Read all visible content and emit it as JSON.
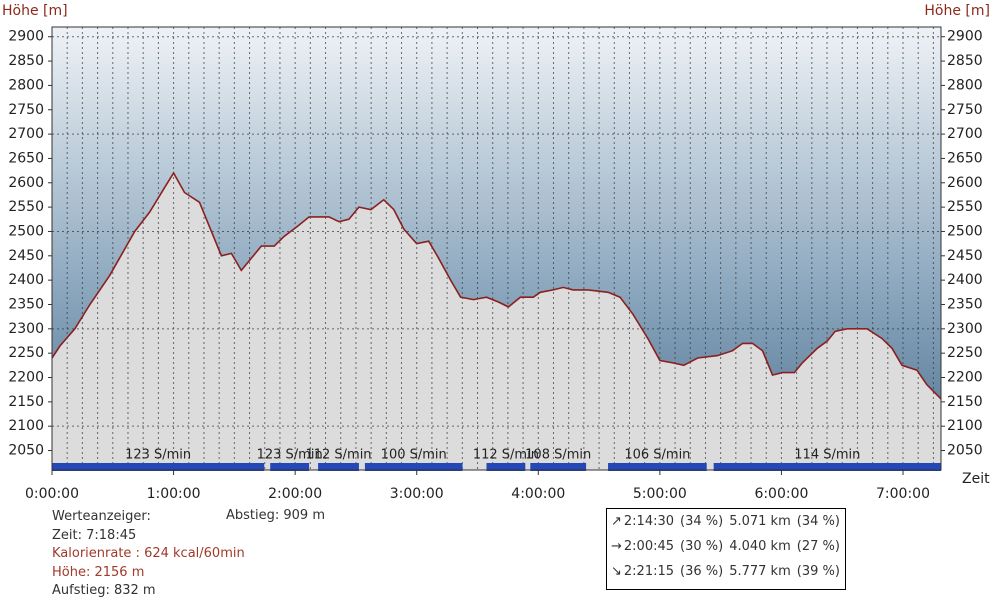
{
  "chart_data": {
    "type": "area",
    "ylabel": "Höhe [m]",
    "xlabel": "Zeit",
    "color": "#8b2020",
    "fill": "#dcdcdc",
    "x": [
      0,
      236,
      679,
      1121,
      1711,
      2449,
      2892,
      3334,
      3600,
      3925,
      4367,
      4662,
      5016,
      5311,
      5607,
      5784,
      6197,
      6580,
      6875,
      7259,
      7613,
      8203,
      8498,
      8793,
      9089,
      9443,
      9826,
      10121,
      10416,
      10800,
      11154,
      11449,
      11803,
      12098,
      12482,
      12866,
      13220,
      13515,
      13869,
      14252,
      14459,
      14843,
      15138,
      15433,
      15875,
      16466,
      16820,
      17203,
      17646,
      18000,
      18384,
      18708,
      19121,
      19711,
      20154,
      20449,
      20744,
      21039,
      21334,
      21629,
      21983,
      22219,
      22662,
      22957,
      23193,
      23547,
      23843,
      24138,
      24580,
      24875,
      25170,
      25613,
      25908,
      26325
    ],
    "values": [
      2240,
      2265,
      2300,
      2350,
      2410,
      2500,
      2540,
      2590,
      2620,
      2580,
      2560,
      2510,
      2450,
      2455,
      2420,
      2435,
      2470,
      2470,
      2490,
      2510,
      2530,
      2530,
      2520,
      2525,
      2550,
      2545,
      2565,
      2545,
      2505,
      2475,
      2480,
      2445,
      2400,
      2365,
      2360,
      2365,
      2355,
      2345,
      2365,
      2365,
      2375,
      2380,
      2385,
      2380,
      2380,
      2375,
      2365,
      2330,
      2280,
      2235,
      2230,
      2225,
      2240,
      2245,
      2255,
      2270,
      2270,
      2255,
      2205,
      2210,
      2210,
      2230,
      2260,
      2275,
      2295,
      2300,
      2300,
      2300,
      2280,
      2260,
      2225,
      2215,
      2185,
      2156
    ],
    "xlim": [
      0,
      26325
    ],
    "xticks": [
      {
        "value": 0,
        "label": "0:00:00"
      },
      {
        "value": 3600,
        "label": "1:00:00"
      },
      {
        "value": 7200,
        "label": "2:00:00"
      },
      {
        "value": 10800,
        "label": "3:00:00"
      },
      {
        "value": 14400,
        "label": "4:00:00"
      },
      {
        "value": 18000,
        "label": "5:00:00"
      },
      {
        "value": 21600,
        "label": "6:00:00"
      },
      {
        "value": 25200,
        "label": "7:00:00"
      }
    ],
    "ylim": [
      2010,
      2920
    ],
    "yticks": [
      2050,
      2100,
      2150,
      2200,
      2250,
      2300,
      2350,
      2400,
      2450,
      2500,
      2550,
      2600,
      2650,
      2700,
      2750,
      2800,
      2850,
      2900
    ],
    "grid": true,
    "cadence": {
      "color": "#2448b8",
      "segments": [
        {
          "label": "123 S/min",
          "start": 0,
          "end": 6285
        },
        {
          "label": "123 S/min",
          "start": 6462,
          "end": 7613
        },
        {
          "label": "112 S/min",
          "start": 7879,
          "end": 9089
        },
        {
          "label": "100 S/min",
          "start": 9266,
          "end": 12157
        },
        {
          "label": "112 S/min",
          "start": 12866,
          "end": 14016
        },
        {
          "label": "108 S/min",
          "start": 14164,
          "end": 15816
        },
        {
          "label": "106 S/min",
          "start": 16466,
          "end": 19387
        },
        {
          "label": "114 S/min",
          "start": 19593,
          "end": 26325
        }
      ]
    }
  },
  "info": {
    "title": "Werteanzeiger:",
    "zeit": "Zeit: 7:18:45",
    "kalorien": "Kalorienrate : 624 kcal/60min",
    "hoehe": "Höhe: 2156 m",
    "aufstieg": "Aufstieg: 832 m",
    "abstieg": "Abstieg: 909 m"
  },
  "summary": [
    {
      "time": "2:14:30",
      "time_pct": "(34 %)",
      "dist": "5.071 km",
      "dist_pct": "(34 %)"
    },
    {
      "time": "2:00:45",
      "time_pct": "(30 %)",
      "dist": "4.040 km",
      "dist_pct": "(27 %)"
    },
    {
      "time": "2:21:15",
      "time_pct": "(36 %)",
      "dist": "5.777 km",
      "dist_pct": "(39 %)"
    }
  ]
}
